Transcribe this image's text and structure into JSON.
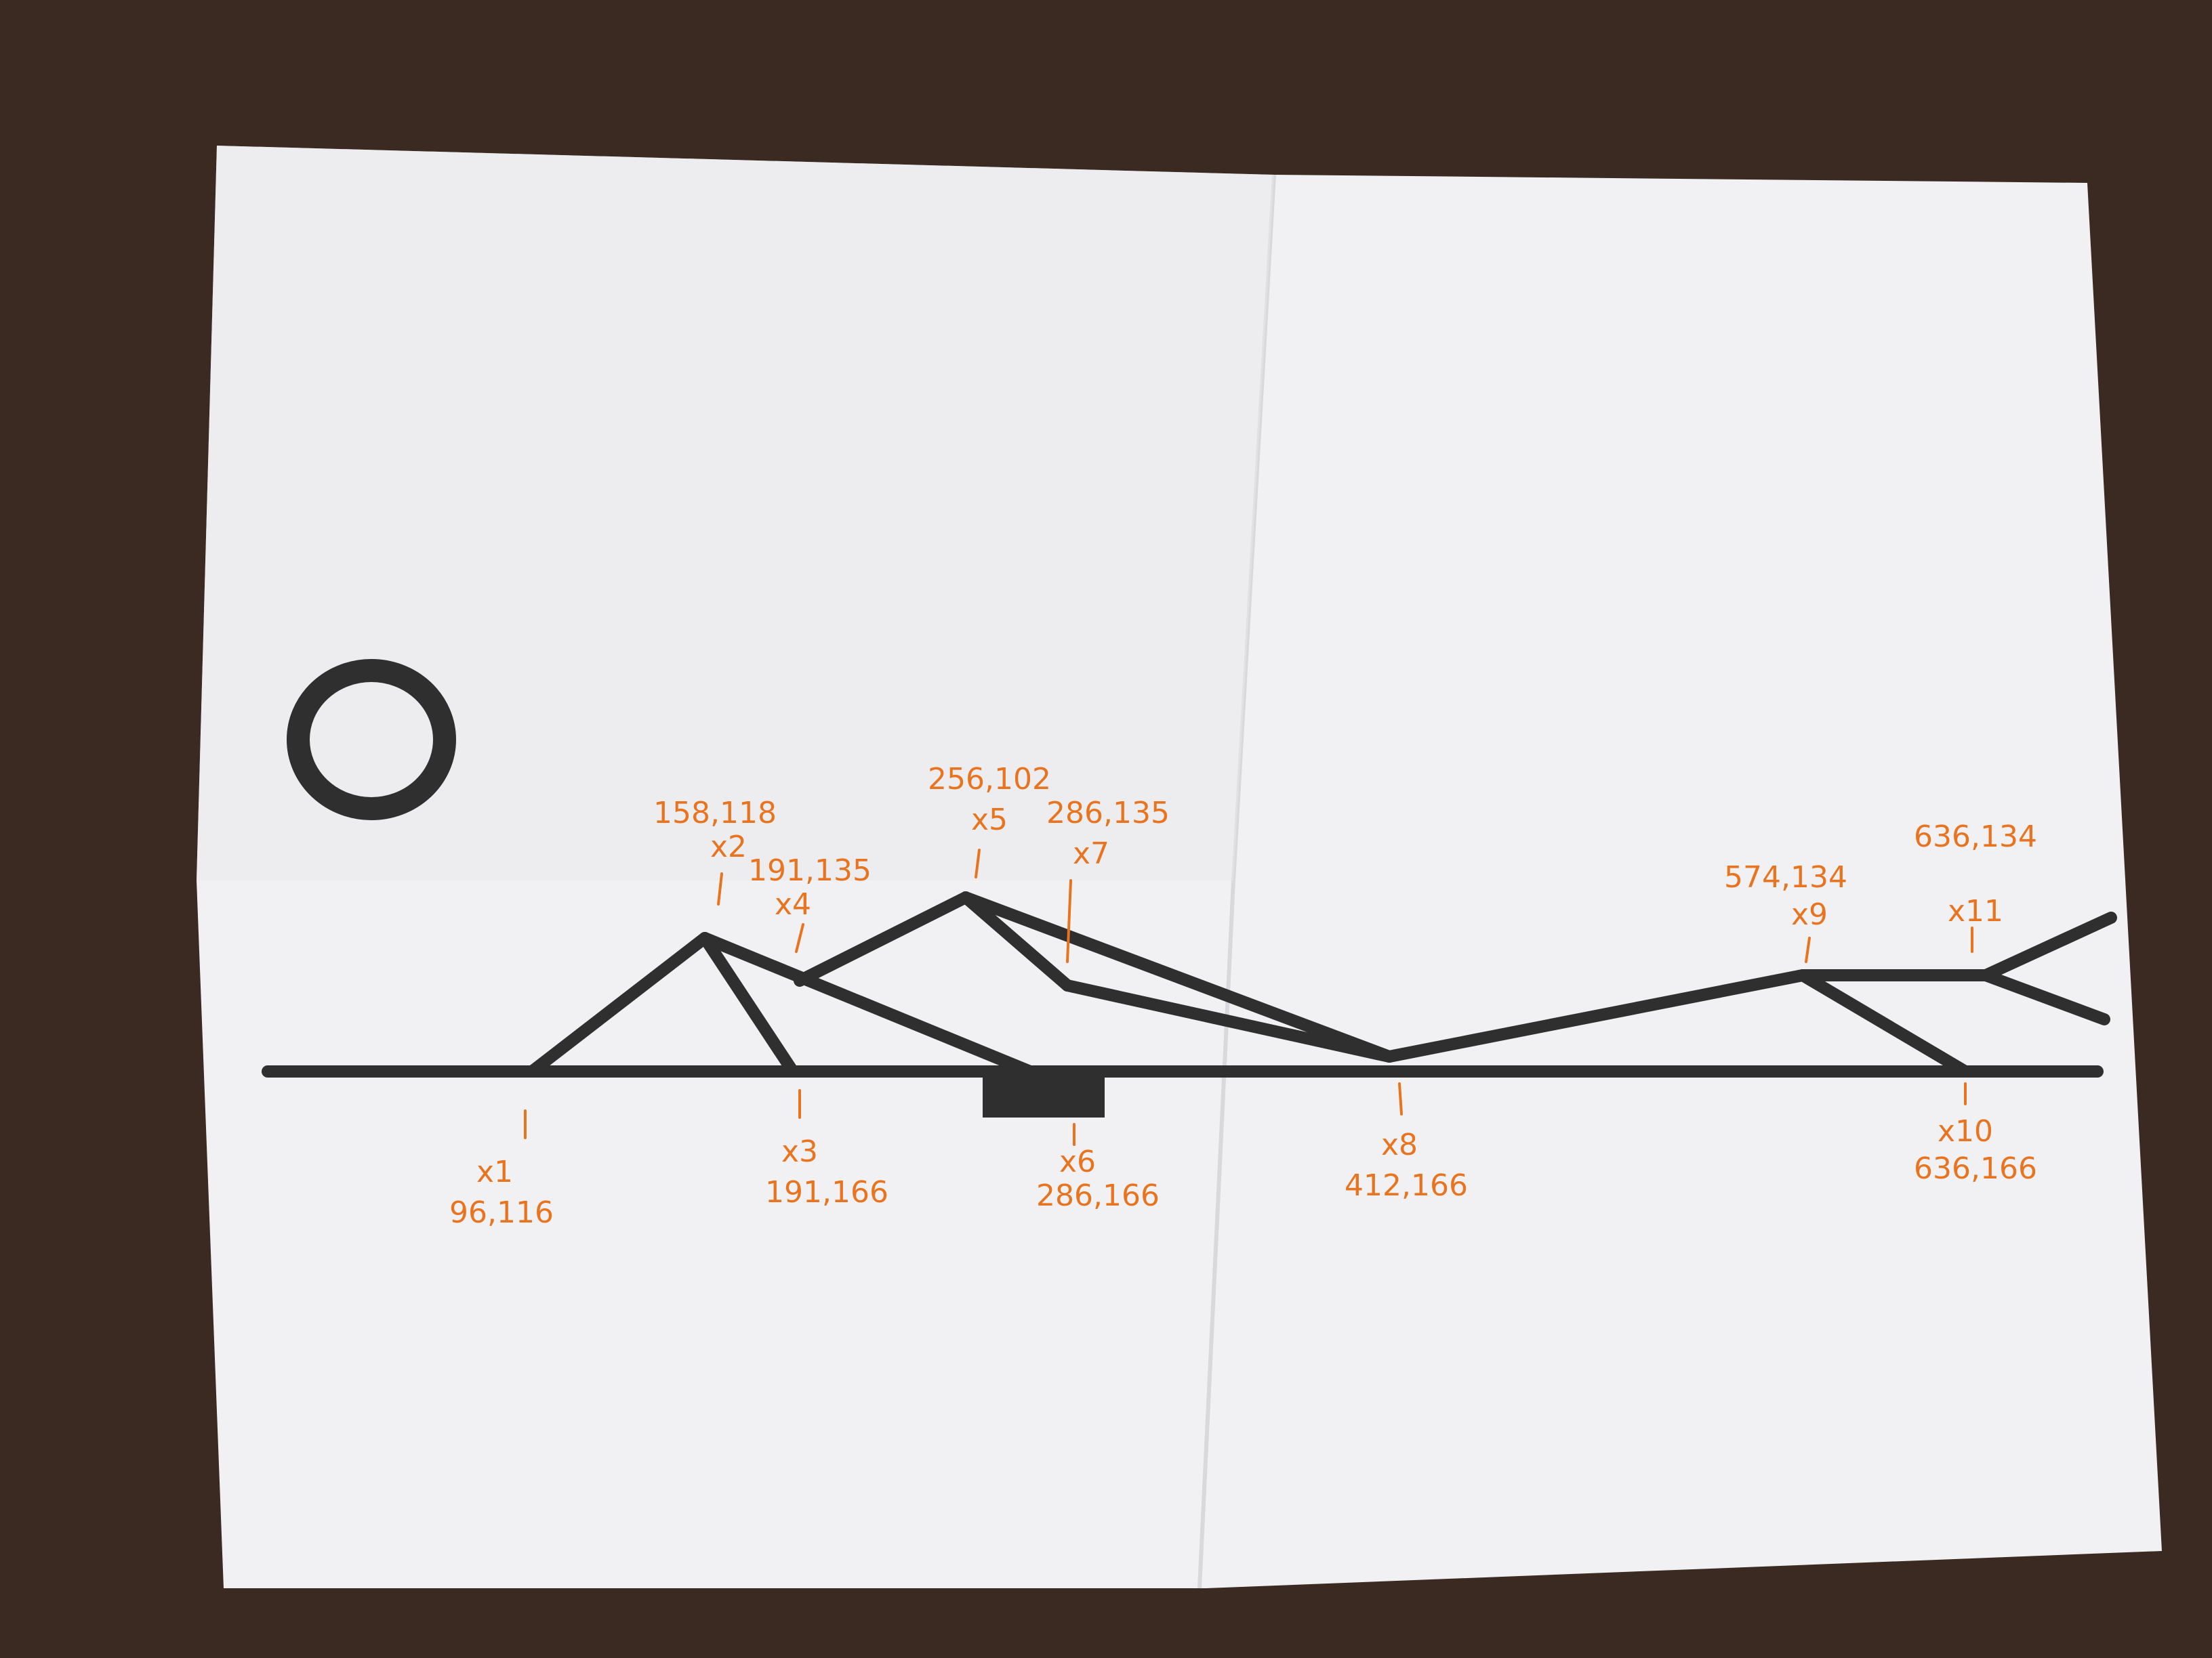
{
  "colors": {
    "table": "#3b2a22",
    "paper": "#f1f1f3",
    "ink": "#2f2f2f",
    "annotation": "#e8741f"
  },
  "annotations": [
    {
      "id": "x1",
      "label": "x1",
      "coords": "96,116"
    },
    {
      "id": "x2",
      "label": "x2",
      "coords": "158,118"
    },
    {
      "id": "x3",
      "label": "x3",
      "coords": "191,166"
    },
    {
      "id": "x4",
      "label": "x4",
      "coords": "191,135"
    },
    {
      "id": "x5",
      "label": "x5",
      "coords": "256,102"
    },
    {
      "id": "x6",
      "label": "x6",
      "coords": "286,166"
    },
    {
      "id": "x7",
      "label": "x7",
      "coords": "286,135"
    },
    {
      "id": "x8",
      "label": "x8",
      "coords": "412,166"
    },
    {
      "id": "x9",
      "label": "x9",
      "coords": "574,134"
    },
    {
      "id": "x10",
      "label": "x10",
      "coords": "636,166"
    },
    {
      "id": "x11",
      "label": "x11",
      "coords": "636,134"
    }
  ]
}
